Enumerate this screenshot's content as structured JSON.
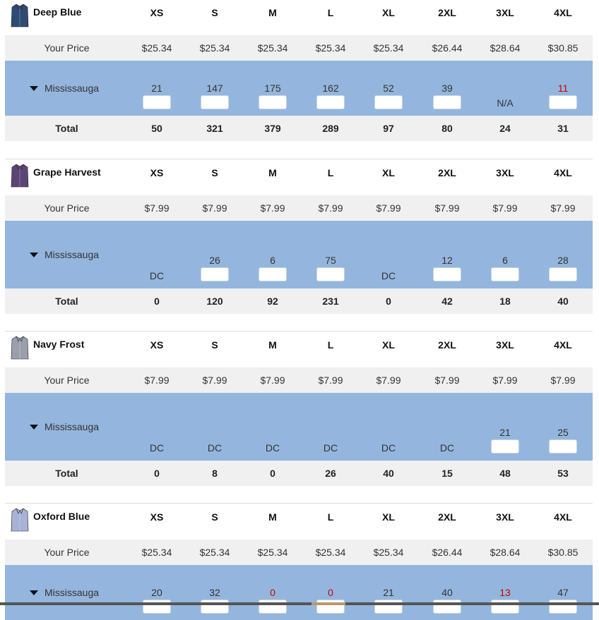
{
  "sizes": [
    "XS",
    "S",
    "M",
    "L",
    "XL",
    "2XL",
    "3XL",
    "4XL"
  ],
  "price_label": "Your Price",
  "total_label": "Total",
  "products": [
    {
      "name": "Deep Blue",
      "color": "#2f4a73",
      "prices": [
        "$25.34",
        "$25.34",
        "$25.34",
        "$25.34",
        "$25.34",
        "$26.44",
        "$28.64",
        "$30.85"
      ],
      "location": "Mississauga",
      "stock": [
        {
          "qty": "21",
          "input": true
        },
        {
          "qty": "147",
          "input": true
        },
        {
          "qty": "175",
          "input": true
        },
        {
          "qty": "162",
          "input": true
        },
        {
          "qty": "52",
          "input": true
        },
        {
          "qty": "39",
          "input": true
        },
        {
          "qty": "",
          "input": false,
          "status": "N/A"
        },
        {
          "qty": "11",
          "input": true,
          "red": true
        }
      ],
      "totals": [
        "50",
        "321",
        "379",
        "289",
        "97",
        "80",
        "24",
        "31"
      ]
    },
    {
      "name": "Grape Harvest",
      "color": "#5b4576",
      "prices": [
        "$7.99",
        "$7.99",
        "$7.99",
        "$7.99",
        "$7.99",
        "$7.99",
        "$7.99",
        "$7.99"
      ],
      "location": "Mississauga",
      "stock": [
        {
          "qty": "",
          "input": false,
          "status": "DC"
        },
        {
          "qty": "26",
          "input": true
        },
        {
          "qty": "6",
          "input": true
        },
        {
          "qty": "75",
          "input": true
        },
        {
          "qty": "",
          "input": false,
          "status": "DC"
        },
        {
          "qty": "12",
          "input": true
        },
        {
          "qty": "6",
          "input": true
        },
        {
          "qty": "28",
          "input": true
        }
      ],
      "totals": [
        "0",
        "120",
        "92",
        "231",
        "0",
        "42",
        "18",
        "40"
      ]
    },
    {
      "name": "Navy Frost",
      "color": "#9aa0ab",
      "prices": [
        "$7.99",
        "$7.99",
        "$7.99",
        "$7.99",
        "$7.99",
        "$7.99",
        "$7.99",
        "$7.99"
      ],
      "location": "Mississauga",
      "stock": [
        {
          "qty": "",
          "input": false,
          "status": "DC"
        },
        {
          "qty": "",
          "input": false,
          "status": "DC"
        },
        {
          "qty": "",
          "input": false,
          "status": "DC"
        },
        {
          "qty": "",
          "input": false,
          "status": "DC"
        },
        {
          "qty": "",
          "input": false,
          "status": "DC"
        },
        {
          "qty": "",
          "input": false,
          "status": "DC"
        },
        {
          "qty": "21",
          "input": true
        },
        {
          "qty": "25",
          "input": true
        }
      ],
      "totals": [
        "0",
        "8",
        "0",
        "26",
        "40",
        "15",
        "48",
        "53"
      ]
    },
    {
      "name": "Oxford Blue",
      "color": "#a6b2d6",
      "prices": [
        "$25.34",
        "$25.34",
        "$25.34",
        "$25.34",
        "$25.34",
        "$26.44",
        "$28.64",
        "$30.85"
      ],
      "location": "Mississauga",
      "stock": [
        {
          "qty": "20",
          "input": true
        },
        {
          "qty": "32",
          "input": true
        },
        {
          "qty": "0",
          "input": true,
          "red": true
        },
        {
          "qty": "0",
          "input": true,
          "red": true
        },
        {
          "qty": "21",
          "input": true
        },
        {
          "qty": "40",
          "input": true
        },
        {
          "qty": "13",
          "input": true,
          "red": true
        },
        {
          "qty": "47",
          "input": true
        }
      ],
      "totals": []
    }
  ]
}
